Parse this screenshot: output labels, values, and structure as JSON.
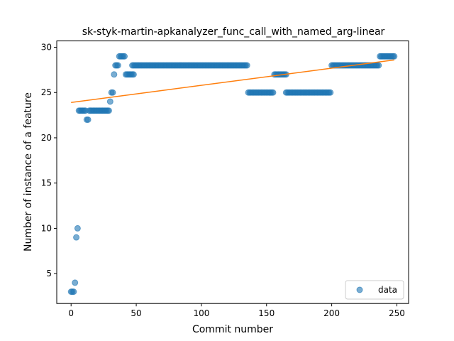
{
  "chart_data": {
    "type": "scatter",
    "title": "sk-styk-martin-apkanalyzer_func_call_with_named_arg-linear",
    "xlabel": "Commit number",
    "ylabel": "Number of instance of a feature",
    "xlim": [
      -11,
      259
    ],
    "ylim": [
      1.7,
      30.7
    ],
    "xticks": [
      0,
      50,
      100,
      150,
      200,
      250
    ],
    "yticks": [
      5,
      10,
      15,
      20,
      25,
      30
    ],
    "legend": {
      "position": "lower-right",
      "label": "data"
    },
    "colors": {
      "points": "#1f77b4",
      "trend": "#ff7f0e"
    },
    "segments": [
      {
        "from": 0,
        "to": 2,
        "value": 3
      },
      {
        "from": 3,
        "to": 3,
        "value": 4
      },
      {
        "from": 4,
        "to": 4,
        "value": 9
      },
      {
        "from": 5,
        "to": 5,
        "value": 10
      },
      {
        "from": 6,
        "to": 11,
        "value": 23
      },
      {
        "from": 12,
        "to": 13,
        "value": 22
      },
      {
        "from": 14,
        "to": 29,
        "value": 23
      },
      {
        "from": 30,
        "to": 30,
        "value": 24
      },
      {
        "from": 31,
        "to": 32,
        "value": 25
      },
      {
        "from": 33,
        "to": 33,
        "value": 27
      },
      {
        "from": 34,
        "to": 36,
        "value": 28
      },
      {
        "from": 37,
        "to": 41,
        "value": 29
      },
      {
        "from": 42,
        "to": 48,
        "value": 27
      },
      {
        "from": 47,
        "to": 135,
        "value": 28
      },
      {
        "from": 136,
        "to": 155,
        "value": 25
      },
      {
        "from": 156,
        "to": 165,
        "value": 27
      },
      {
        "from": 165,
        "to": 199,
        "value": 25
      },
      {
        "from": 200,
        "to": 236,
        "value": 28
      },
      {
        "from": 237,
        "to": 248,
        "value": 29
      }
    ],
    "trend": {
      "x": [
        0,
        248
      ],
      "y": [
        23.9,
        28.6
      ]
    }
  }
}
